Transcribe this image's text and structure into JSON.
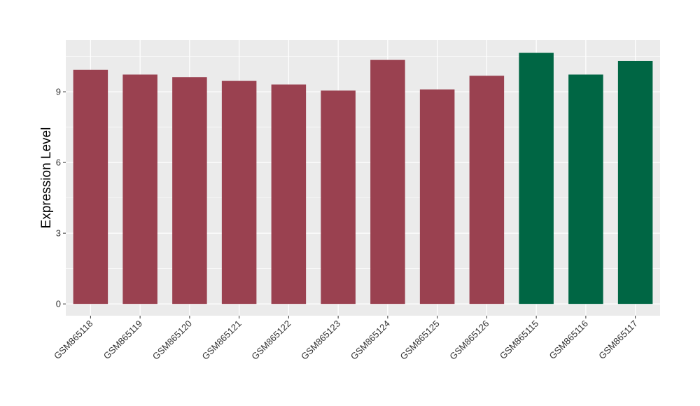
{
  "chart_data": {
    "type": "bar",
    "title": "",
    "xlabel": "",
    "ylabel": "Expression Level",
    "categories": [
      "GSM865118",
      "GSM865119",
      "GSM865120",
      "GSM865121",
      "GSM865122",
      "GSM865123",
      "GSM865124",
      "GSM865125",
      "GSM865126",
      "GSM865115",
      "GSM865116",
      "GSM865117"
    ],
    "values": [
      9.93,
      9.73,
      9.62,
      9.46,
      9.31,
      9.05,
      10.35,
      9.1,
      9.68,
      10.65,
      9.73,
      10.31
    ],
    "bar_colors": [
      "#9a4150",
      "#9a4150",
      "#9a4150",
      "#9a4150",
      "#9a4150",
      "#9a4150",
      "#9a4150",
      "#9a4150",
      "#9a4150",
      "#006644",
      "#006644",
      "#006644"
    ],
    "yticks": [
      0,
      3,
      6,
      9
    ],
    "ytick_labels": [
      "0",
      "3",
      "6",
      "9"
    ],
    "ylim": [
      -0.5,
      11.2
    ],
    "grid": true,
    "legend": "none",
    "panel_background": "#ebebeb",
    "grid_color": "#ffffff"
  }
}
